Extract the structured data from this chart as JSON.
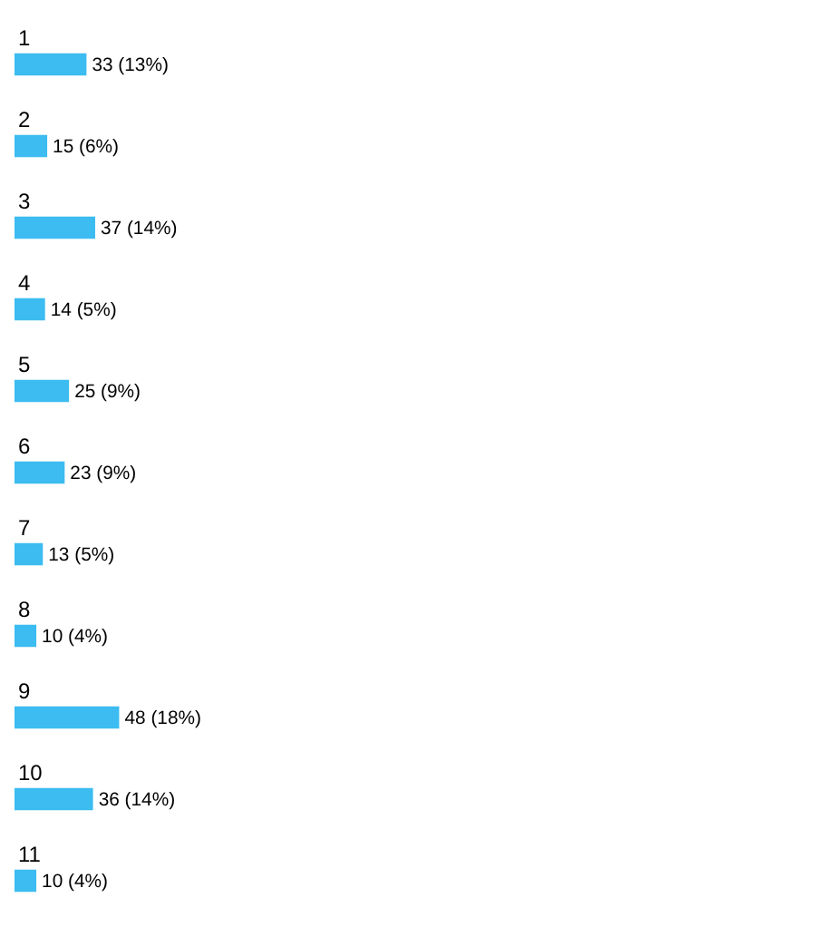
{
  "chart_data": {
    "type": "bar",
    "orientation": "horizontal",
    "categories": [
      "1",
      "2",
      "3",
      "4",
      "5",
      "6",
      "7",
      "8",
      "9",
      "10",
      "11"
    ],
    "values": [
      33,
      15,
      37,
      14,
      25,
      23,
      13,
      10,
      48,
      36,
      10
    ],
    "value_labels": [
      "33 (13%)",
      "15 (6%)",
      "37 (14%)",
      "14 (5%)",
      "25 (9%)",
      "23 (9%)",
      "13 (5%)",
      "10 (4%)",
      "48 (18%)",
      "36 (14%)",
      "10 (4%)"
    ],
    "color": "#3cbcf0",
    "grid": false,
    "legend": false
  }
}
